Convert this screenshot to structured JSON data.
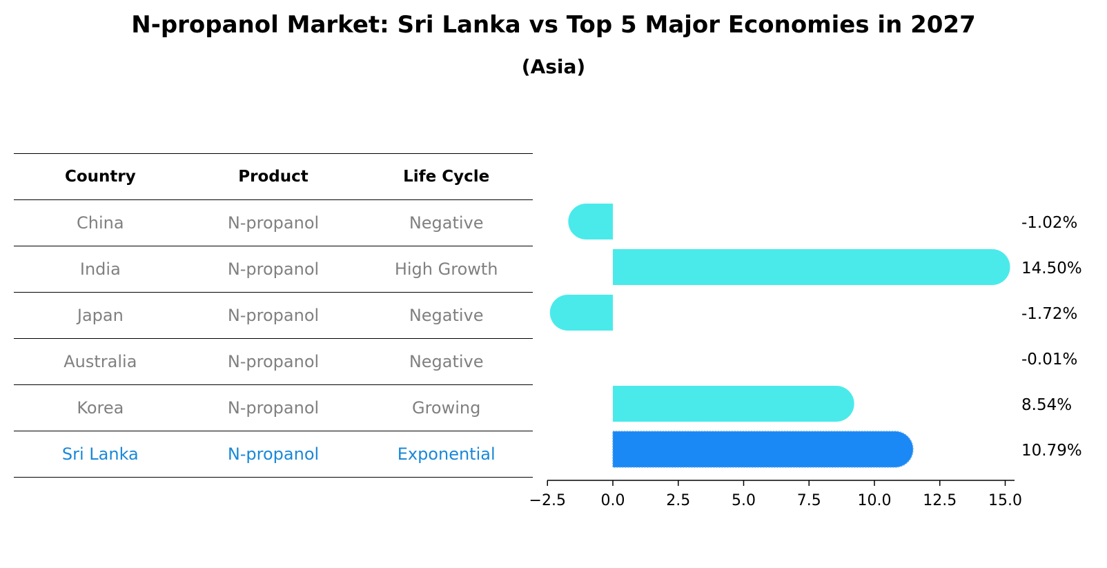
{
  "header": {
    "title": "N-propanol Market: Sri Lanka vs Top 5 Major Economies in 2027",
    "subtitle": "(Asia)"
  },
  "table": {
    "columns": [
      "Country",
      "Product",
      "Life Cycle"
    ],
    "rows": [
      {
        "country": "China",
        "product": "N-propanol",
        "life_cycle": "Negative"
      },
      {
        "country": "India",
        "product": "N-propanol",
        "life_cycle": "High Growth"
      },
      {
        "country": "Japan",
        "product": "N-propanol",
        "life_cycle": "Negative"
      },
      {
        "country": "Australia",
        "product": "N-propanol",
        "life_cycle": "Negative"
      },
      {
        "country": "Korea",
        "product": "N-propanol",
        "life_cycle": "Growing"
      },
      {
        "country": "Sri Lanka",
        "product": "N-propanol",
        "life_cycle": "Exponential"
      }
    ]
  },
  "chart_data": {
    "type": "bar",
    "orientation": "horizontal",
    "categories": [
      "China",
      "India",
      "Japan",
      "Australia",
      "Korea",
      "Sri Lanka"
    ],
    "values": [
      -1.02,
      14.5,
      -1.72,
      -0.01,
      8.54,
      10.79
    ],
    "value_labels": [
      "-1.02%",
      "14.50%",
      "-1.72%",
      "-0.01%",
      "8.54%",
      "10.79%"
    ],
    "xlim": [
      -2.5,
      15.3
    ],
    "xticks": [
      -2.5,
      0.0,
      2.5,
      5.0,
      7.5,
      10.0,
      12.5,
      15.0
    ],
    "xtick_labels": [
      "−2.5",
      "0.0",
      "2.5",
      "5.0",
      "7.5",
      "10.0",
      "12.5",
      "15.0"
    ],
    "highlight": "Sri Lanka",
    "colors": {
      "default": "#4aeaea",
      "highlight": "#1a88f5"
    },
    "grid": false
  }
}
